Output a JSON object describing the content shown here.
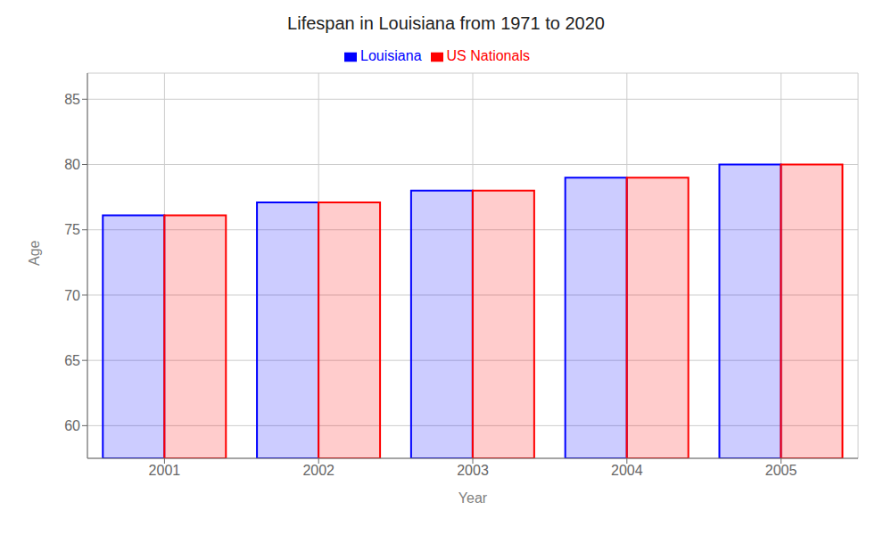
{
  "chart_data": {
    "type": "bar",
    "title": "Lifespan in Louisiana from 1971 to 2020",
    "x_label": "Year",
    "y_label": "Age",
    "categories": [
      "2001",
      "2002",
      "2003",
      "2004",
      "2005"
    ],
    "series": [
      {
        "name": "Louisiana",
        "color": "#0000ff",
        "values": [
          76.1,
          77.1,
          78.0,
          79.0,
          80.0
        ]
      },
      {
        "name": "US Nationals",
        "color": "#ff0000",
        "values": [
          76.1,
          77.1,
          78.0,
          79.0,
          80.0
        ]
      }
    ],
    "ylim": [
      57.5,
      87
    ],
    "yticks": [
      60,
      65,
      70,
      75,
      80,
      85
    ],
    "grid": true,
    "legend": "top"
  }
}
